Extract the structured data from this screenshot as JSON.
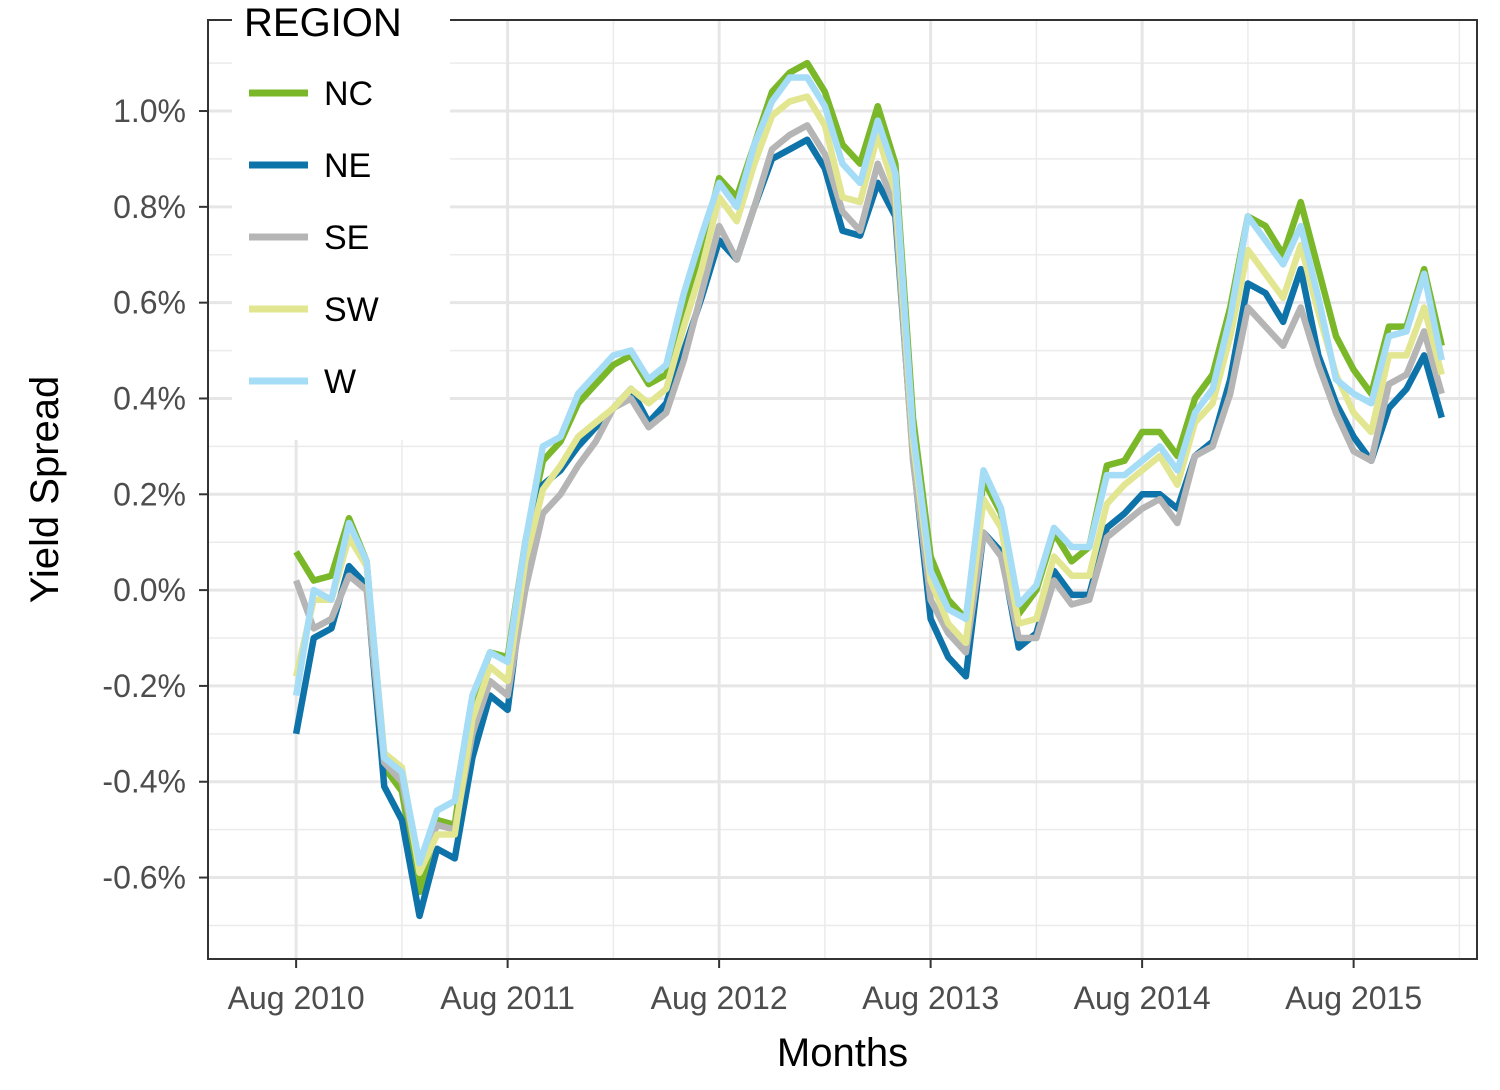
{
  "chart_data": {
    "type": "line",
    "xlabel": "Months",
    "ylabel": "Yield Spread",
    "x_start": "2010-08",
    "x_end": "2015-12",
    "xlim": [
      "2010-03",
      "2016-03"
    ],
    "ylim": [
      -0.77,
      1.19
    ],
    "x_ticks": [
      {
        "date": "2010-08",
        "label": "Aug 2010"
      },
      {
        "date": "2011-08",
        "label": "Aug 2011"
      },
      {
        "date": "2012-08",
        "label": "Aug 2012"
      },
      {
        "date": "2013-08",
        "label": "Aug 2013"
      },
      {
        "date": "2014-08",
        "label": "Aug 2014"
      },
      {
        "date": "2015-08",
        "label": "Aug 2015"
      }
    ],
    "y_ticks": [
      {
        "value": -0.6,
        "label": "-0.6%"
      },
      {
        "value": -0.4,
        "label": "-0.4%"
      },
      {
        "value": -0.2,
        "label": "-0.2%"
      },
      {
        "value": 0.0,
        "label": "0.0%"
      },
      {
        "value": 0.2,
        "label": "0.2%"
      },
      {
        "value": 0.4,
        "label": "0.4%"
      },
      {
        "value": 0.6,
        "label": "0.6%"
      },
      {
        "value": 0.8,
        "label": "0.8%"
      },
      {
        "value": 1.0,
        "label": "1.0%"
      }
    ],
    "grid": true,
    "legend": {
      "title": "REGION",
      "position": "top-left inside"
    },
    "series": [
      {
        "name": "NC",
        "color": "#7ab829",
        "values": [
          0.08,
          0.02,
          0.03,
          0.15,
          0.06,
          -0.37,
          -0.42,
          -0.63,
          -0.48,
          -0.49,
          -0.23,
          -0.13,
          -0.14,
          0.1,
          0.27,
          0.31,
          0.39,
          0.43,
          0.47,
          0.49,
          0.43,
          0.45,
          0.58,
          0.71,
          0.86,
          0.82,
          0.93,
          1.04,
          1.08,
          1.1,
          1.04,
          0.93,
          0.89,
          1.01,
          0.89,
          0.36,
          0.07,
          -0.02,
          -0.06,
          0.23,
          0.16,
          -0.05,
          0.0,
          0.12,
          0.06,
          0.09,
          0.26,
          0.27,
          0.33,
          0.33,
          0.28,
          0.4,
          0.45,
          0.59,
          0.78,
          0.76,
          0.7,
          0.81,
          0.67,
          0.53,
          0.46,
          0.41,
          0.55,
          0.55,
          0.67,
          0.51
        ]
      },
      {
        "name": "NE",
        "color": "#0d73a8",
        "values": [
          -0.3,
          -0.1,
          -0.08,
          0.05,
          0.01,
          -0.41,
          -0.48,
          -0.68,
          -0.54,
          -0.56,
          -0.35,
          -0.22,
          -0.25,
          0.04,
          0.22,
          0.25,
          0.3,
          0.34,
          0.38,
          0.42,
          0.35,
          0.39,
          0.5,
          0.61,
          0.73,
          0.69,
          0.8,
          0.9,
          0.92,
          0.94,
          0.88,
          0.75,
          0.74,
          0.85,
          0.78,
          0.28,
          -0.06,
          -0.14,
          -0.18,
          0.12,
          0.08,
          -0.12,
          -0.09,
          0.04,
          -0.01,
          -0.01,
          0.13,
          0.16,
          0.2,
          0.2,
          0.17,
          0.28,
          0.31,
          0.44,
          0.64,
          0.62,
          0.56,
          0.67,
          0.49,
          0.39,
          0.32,
          0.27,
          0.38,
          0.42,
          0.49,
          0.36
        ]
      },
      {
        "name": "SE",
        "color": "#b5b5b5",
        "values": [
          0.02,
          -0.08,
          -0.06,
          0.03,
          0.0,
          -0.36,
          -0.4,
          -0.58,
          -0.49,
          -0.5,
          -0.3,
          -0.19,
          -0.22,
          0.0,
          0.16,
          0.2,
          0.26,
          0.31,
          0.38,
          0.4,
          0.34,
          0.37,
          0.48,
          0.62,
          0.76,
          0.69,
          0.8,
          0.92,
          0.95,
          0.97,
          0.91,
          0.79,
          0.75,
          0.89,
          0.8,
          0.27,
          -0.02,
          -0.09,
          -0.13,
          0.12,
          0.07,
          -0.1,
          -0.1,
          0.02,
          -0.03,
          -0.02,
          0.11,
          0.14,
          0.17,
          0.19,
          0.14,
          0.28,
          0.3,
          0.41,
          0.59,
          0.55,
          0.51,
          0.59,
          0.47,
          0.37,
          0.29,
          0.27,
          0.43,
          0.45,
          0.54,
          0.41
        ]
      },
      {
        "name": "SW",
        "color": "#e2e690",
        "values": [
          -0.18,
          -0.02,
          -0.02,
          0.11,
          0.05,
          -0.34,
          -0.37,
          -0.59,
          -0.51,
          -0.51,
          -0.27,
          -0.16,
          -0.19,
          0.06,
          0.21,
          0.26,
          0.32,
          0.35,
          0.38,
          0.42,
          0.39,
          0.42,
          0.55,
          0.67,
          0.82,
          0.77,
          0.89,
          0.99,
          1.02,
          1.03,
          0.97,
          0.82,
          0.81,
          0.95,
          0.83,
          0.31,
          0.02,
          -0.07,
          -0.11,
          0.19,
          0.13,
          -0.07,
          -0.06,
          0.07,
          0.03,
          0.03,
          0.18,
          0.22,
          0.25,
          0.28,
          0.22,
          0.35,
          0.39,
          0.53,
          0.71,
          0.66,
          0.61,
          0.72,
          0.58,
          0.45,
          0.37,
          0.33,
          0.49,
          0.49,
          0.59,
          0.45
        ]
      },
      {
        "name": "W",
        "color": "#a5dcf6",
        "values": [
          -0.22,
          0.0,
          -0.02,
          0.14,
          0.06,
          -0.35,
          -0.38,
          -0.57,
          -0.46,
          -0.44,
          -0.22,
          -0.13,
          -0.15,
          0.1,
          0.3,
          0.32,
          0.41,
          0.45,
          0.49,
          0.5,
          0.44,
          0.47,
          0.62,
          0.74,
          0.85,
          0.8,
          0.93,
          1.02,
          1.07,
          1.07,
          1.01,
          0.89,
          0.85,
          0.98,
          0.87,
          0.33,
          0.04,
          -0.04,
          -0.06,
          0.25,
          0.17,
          -0.03,
          0.01,
          0.13,
          0.09,
          0.09,
          0.24,
          0.24,
          0.27,
          0.3,
          0.25,
          0.37,
          0.42,
          0.57,
          0.78,
          0.73,
          0.68,
          0.76,
          0.61,
          0.44,
          0.41,
          0.39,
          0.53,
          0.54,
          0.66,
          0.48
        ]
      }
    ]
  }
}
